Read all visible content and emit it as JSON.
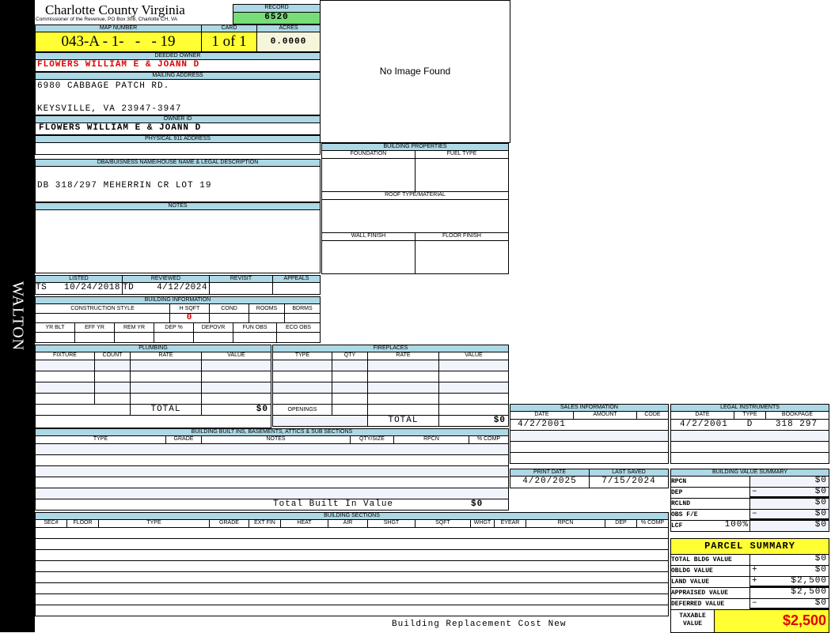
{
  "side_label": "WALTON",
  "header": {
    "title": "Charlotte County Virginia",
    "subtitle": "Commissioner of the Revenue, PO Box 308, Charlotte CH, VA",
    "record_label": "RECORD",
    "record": "6520"
  },
  "parcel": {
    "map_label": "MAP NUMBER",
    "map": "043-A - 1-   -   - 19",
    "card_label": "CARD",
    "card": "1 of 1",
    "acres_label": "ACRES",
    "acres": "0.0000"
  },
  "owner": {
    "deeded_label": "DEEDED OWNER",
    "deeded": "FLOWERS WILLIAM E & JOANN D",
    "mailing_label": "MAILING ADDRESS",
    "mail1": "6980 CABBAGE PATCH RD.",
    "mail2": "KEYSVILLE, VA 23947-3947",
    "id_label": "OWNER ID",
    "id": "FLOWERS WILLIAM E & JOANN D",
    "phys_label": "PHYSICAL 911 ADDRESS",
    "phys": ""
  },
  "image": {
    "text": "No Image Found"
  },
  "dba": {
    "label": "DBA/BUISNESS NAME/HOUSE NAME & LEGAL DESCRIPTION",
    "value": "DB 318/297 MEHERRIN CR LOT 19"
  },
  "notes": {
    "label": "NOTES"
  },
  "props": {
    "label": "BUILDING PROPERTIES",
    "foundation": "FOUNDATION",
    "fuel": "FUEL TYPE",
    "roof": "ROOF TYPE/MATERIAL",
    "wall": "WALL FINISH",
    "floor": "FLOOR FINISH"
  },
  "review": {
    "listed_label": "LISTED",
    "listed_by": "TS",
    "listed": "10/24/2018",
    "reviewed_label": "REVIEWED",
    "reviewed_by": "TD",
    "reviewed": "4/12/2024",
    "revisit_label": "REVISIT",
    "appeals_label": "APPEALS"
  },
  "bldg_info": {
    "label": "BUILDING INFORMATION",
    "cols1": [
      "CONSTRUCTION STYLE",
      "H SQFT",
      "COND",
      "ROOMS",
      "BDRMS"
    ],
    "hsqft": "0",
    "cols2": [
      "YR BLT",
      "EFF YR",
      "REM YR",
      "DEP %",
      "DEPOVR",
      "FUN OBS",
      "ECO OBS"
    ]
  },
  "plumbing": {
    "label": "PLUMBING",
    "cols": [
      "FIXTURE",
      "COUNT",
      "RATE",
      "VALUE"
    ],
    "total_label": "TOTAL",
    "total": "$0"
  },
  "fireplaces": {
    "label": "FIREPLACES",
    "cols": [
      "TYPE",
      "QTY",
      "RATE",
      "VALUE"
    ],
    "openings_label": "OPENINGS",
    "total_label": "TOTAL",
    "total": "$0"
  },
  "builtins": {
    "label": "BUILDING BUILT INS, BASEMENTS, ATTICS & SUB SECTIONS",
    "cols": [
      "TYPE",
      "GRADE",
      "NOTES",
      "QTY/SIZE",
      "RPCN",
      "% COMP"
    ],
    "total_label": "Total Built In Value",
    "total": "$0"
  },
  "sections": {
    "label": "BUILDING SECTIONS",
    "cols": [
      "SEC#",
      "FLOOR",
      "TYPE",
      "GRADE",
      "EXT FIN",
      "HEAT",
      "AIR",
      "SHGT",
      "SQFT",
      "WHGT",
      "EYEAR",
      "RPCN",
      "DEP",
      "% COMP"
    ],
    "footer": "Building Replacement Cost New"
  },
  "sales": {
    "label": "SALES INFORMATION",
    "cols": [
      "DATE",
      "AMOUNT",
      "CODE"
    ],
    "rows": [
      {
        "date": "4/2/2001",
        "amount": "",
        "code": ""
      }
    ]
  },
  "legal": {
    "label": "LEGAL INSTRUMENTS",
    "cols": [
      "DATE",
      "TYPE",
      "BOOKPAGE"
    ],
    "rows": [
      {
        "date": "4/2/2001",
        "type": "D",
        "bookpage": "318 297"
      }
    ]
  },
  "dates": {
    "print_label": "PRINT DATE",
    "print": "4/20/2025",
    "saved_label": "LAST SAVED",
    "saved": "7/15/2024"
  },
  "bvs": {
    "label": "BUILDING VALUE SUMMARY",
    "rows": [
      {
        "label": "RPCN",
        "op": "",
        "value": "$0"
      },
      {
        "label": "DEP",
        "op": "–",
        "value": "$0"
      },
      {
        "label": "RCLND",
        "op": "",
        "value": "$0"
      },
      {
        "label": "OBS F/E",
        "op": "–",
        "value": "$0"
      },
      {
        "label": "LCF",
        "pct": "100%",
        "op": "",
        "value": "$0"
      }
    ]
  },
  "summary": {
    "label": "PARCEL SUMMARY",
    "rows": [
      {
        "label": "TOTAL BLDG VALUE",
        "op": "",
        "value": "$0"
      },
      {
        "label": "OBLDG VALUE",
        "op": "+",
        "value": "$0"
      },
      {
        "label": "LAND VALUE",
        "op": "+",
        "value": "$2,500"
      },
      {
        "label": "APPRAISED VALUE",
        "op": "",
        "value": "$2,500"
      },
      {
        "label": "DEFERRED VALUE",
        "op": "–",
        "value": "$0"
      }
    ],
    "taxable_label": "TAXABLE VALUE",
    "taxable": "$2,500"
  },
  "colors": {
    "header_blue": "#add8e6",
    "yellow": "#ffff33",
    "green": "#77dd77",
    "owner_red": "#e00000"
  }
}
